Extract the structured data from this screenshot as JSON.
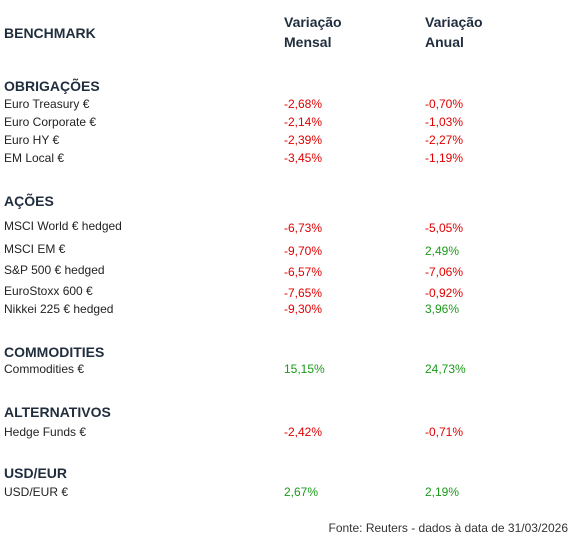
{
  "header": {
    "title": "BENCHMARK",
    "columns": [
      "Variação Mensal",
      "Variação Anual"
    ]
  },
  "sections": [
    {
      "title": "OBRIGAÇÕES",
      "rows": [
        [
          "Euro Treasury €",
          "-2,68%",
          "-0,70%"
        ],
        [
          "Euro Corporate €",
          "-2,14%",
          "-1,03%"
        ],
        [
          "Euro HY €",
          "-2,39%",
          "-2,27%"
        ],
        [
          "EM Local €",
          "-3,45%",
          "-1,19%"
        ]
      ]
    },
    {
      "title": "AÇÕES",
      "rows": [
        [
          "MSCI World € hedged",
          "-6,73%",
          "-5,05%"
        ],
        [
          "MSCI EM €",
          "-9,70%",
          "2,49%"
        ],
        [
          "S&P 500 € hedged",
          "-6,57%",
          "-7,06%"
        ],
        [
          "EuroStoxx 600 €",
          "-7,65%",
          "-0,92%"
        ],
        [
          "Nikkei 225 € hedged",
          "-9,30%",
          "3,96%"
        ]
      ]
    },
    {
      "title": "COMMODITIES",
      "rows": [
        [
          "Commodities €",
          "15,15%",
          "24,73%"
        ]
      ]
    },
    {
      "title": "ALTERNATIVOS",
      "rows": [
        [
          "Hedge Funds €",
          "-2,42%",
          "-0,71%"
        ]
      ]
    },
    {
      "title": "USD/EUR",
      "rows": [
        [
          "USD/EUR €",
          "2,67%",
          "2,19%"
        ]
      ]
    }
  ],
  "footer": "Fonte: Reuters - dados à data de 31/03/2026"
}
